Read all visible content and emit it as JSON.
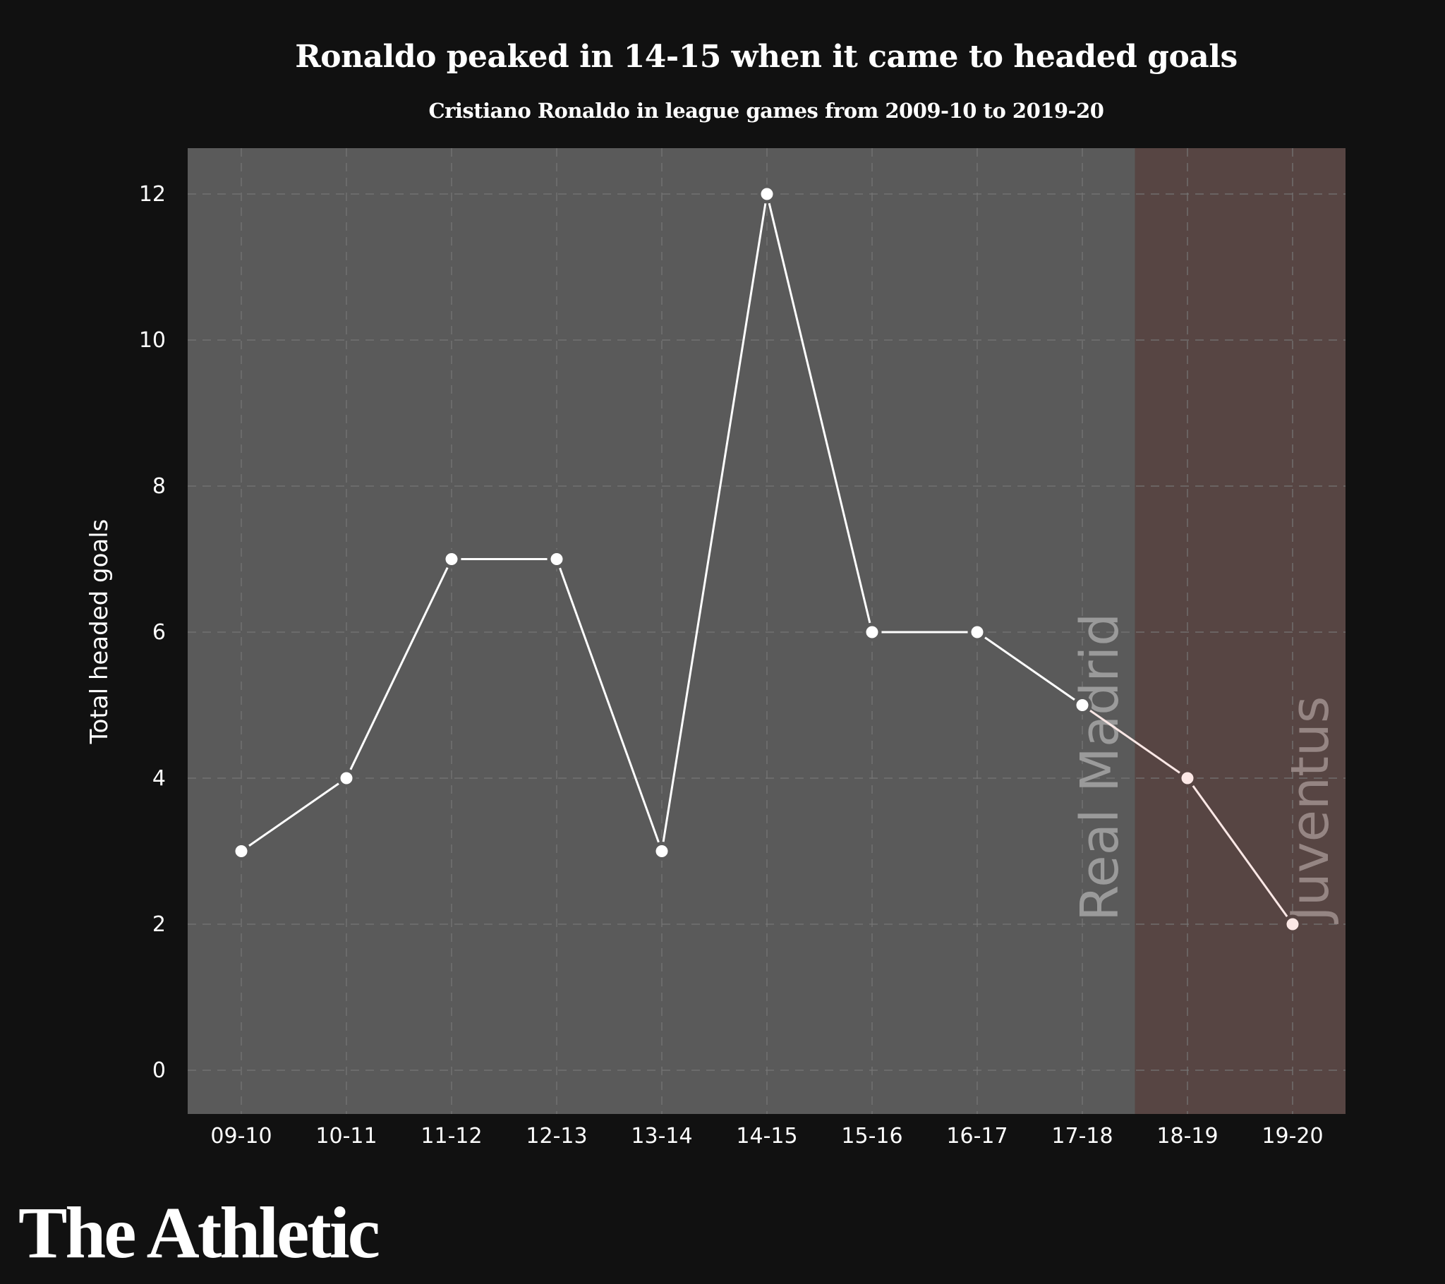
{
  "chart_data": {
    "type": "line",
    "title": "Ronaldo peaked in 14-15 when it came to headed goals",
    "subtitle": "Cristiano Ronaldo in league games from 2009-10 to 2019-20",
    "xlabel": "",
    "ylabel": "Total headed goals",
    "categories": [
      "09-10",
      "10-11",
      "11-12",
      "12-13",
      "13-14",
      "14-15",
      "15-16",
      "16-17",
      "17-18",
      "18-19",
      "19-20"
    ],
    "values": [
      3,
      4,
      7,
      7,
      3,
      12,
      6,
      6,
      5,
      4,
      2
    ],
    "ylim": [
      -0.6,
      12.6
    ],
    "yticks": [
      0,
      2,
      4,
      6,
      8,
      10,
      12
    ],
    "grid": true,
    "regions": [
      {
        "label": "Real Madrid",
        "from": "09-10",
        "to": "17-18",
        "color": "#5a5a5a",
        "label_color": "#9a9a9a",
        "point_color": "#ffffff"
      },
      {
        "label": "Juventus",
        "from": "18-19",
        "to": "19-20",
        "color": "#574543",
        "label_color": "#958583",
        "point_color": "#fce8e6"
      }
    ]
  },
  "colors": {
    "background": "#111111",
    "text": "#ffffff",
    "grid": "#777777"
  },
  "branding": {
    "logo": "The Athletic"
  }
}
